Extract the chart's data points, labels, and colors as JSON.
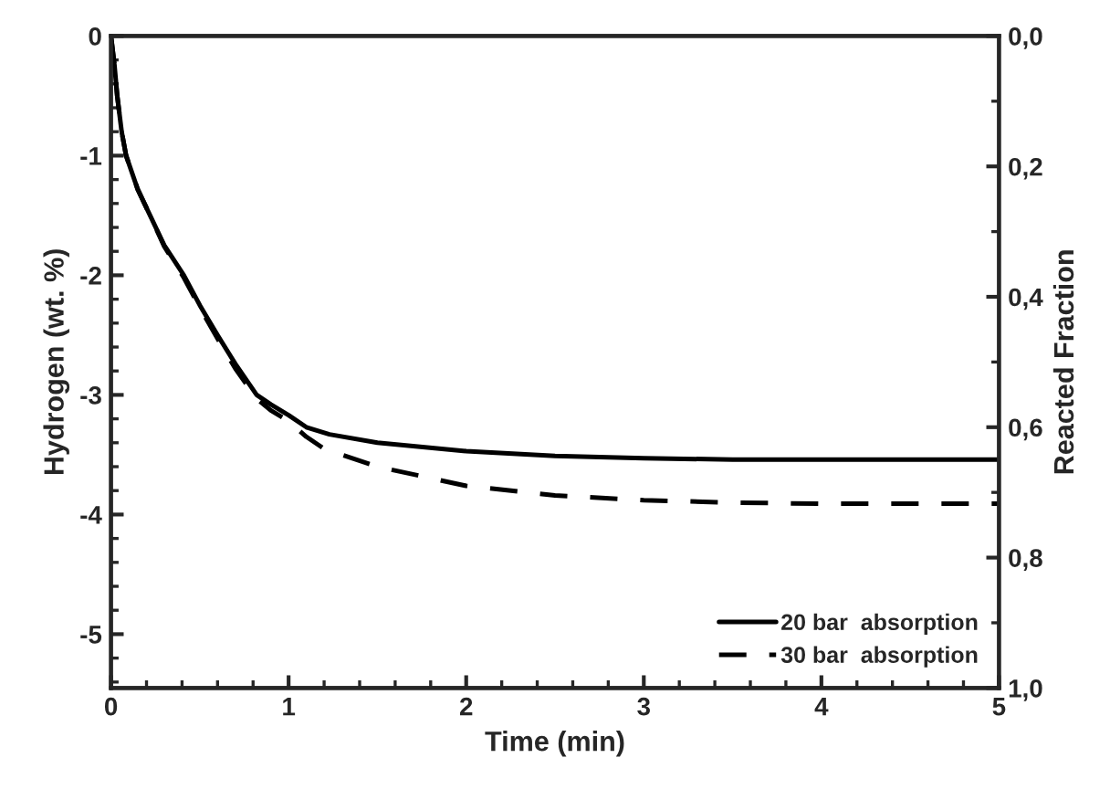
{
  "chart_data": {
    "type": "line",
    "xlabel": "Time (min)",
    "ylabel": "Hydrogen (wt. %)",
    "y2label": "Reacted Fraction",
    "xlim": [
      0,
      5
    ],
    "xticks": [
      0,
      1,
      2,
      3,
      4,
      5
    ],
    "ylim": [
      -5.45,
      0
    ],
    "yticks": [
      -5,
      -4,
      -3,
      -2,
      -1,
      0
    ],
    "y2lim": [
      1.0,
      0.0
    ],
    "y2ticks": [
      {
        "value": 0,
        "label": "0,0"
      },
      {
        "value": 0.2,
        "label": "0,2"
      },
      {
        "value": 0.4,
        "label": "0,4"
      },
      {
        "value": 0.6,
        "label": "0,6"
      },
      {
        "value": 0.8,
        "label": "0,8"
      },
      {
        "value": 1.0,
        "label": "1,0"
      }
    ],
    "legend": "bottom right",
    "grid": false,
    "marker": "none",
    "series": [
      {
        "name": "20 bar  absorption",
        "color": "#000000",
        "line_style": "solid",
        "x": [
          0,
          0.02,
          0.035,
          0.06,
          0.085,
          0.15,
          0.22,
          0.3,
          0.41,
          0.5,
          0.6,
          0.7,
          0.82,
          0.9,
          1.0,
          1.1,
          1.23,
          1.5,
          2.0,
          2.5,
          3.0,
          3.5,
          4.0,
          4.5,
          5.0
        ],
        "values": [
          0,
          -0.25,
          -0.5,
          -0.8,
          -1.0,
          -1.28,
          -1.5,
          -1.75,
          -2.0,
          -2.25,
          -2.5,
          -2.74,
          -3.0,
          -3.08,
          -3.17,
          -3.27,
          -3.33,
          -3.4,
          -3.47,
          -3.51,
          -3.53,
          -3.54,
          -3.54,
          -3.54,
          -3.54
        ]
      },
      {
        "name": "30 bar  absorption",
        "color": "#000000",
        "line_style": "dashed",
        "x": [
          0,
          0.02,
          0.035,
          0.06,
          0.085,
          0.15,
          0.22,
          0.3,
          0.41,
          0.5,
          0.6,
          0.7,
          0.82,
          0.9,
          1.0,
          1.1,
          1.2,
          1.5,
          2.0,
          2.5,
          3.0,
          3.5,
          4.0,
          4.5,
          5.0
        ],
        "values": [
          0,
          -0.25,
          -0.5,
          -0.8,
          -1.0,
          -1.28,
          -1.5,
          -1.76,
          -2.02,
          -2.27,
          -2.53,
          -2.78,
          -3.03,
          -3.13,
          -3.22,
          -3.35,
          -3.45,
          -3.6,
          -3.76,
          -3.84,
          -3.88,
          -3.9,
          -3.91,
          -3.91,
          -3.91
        ]
      }
    ]
  }
}
